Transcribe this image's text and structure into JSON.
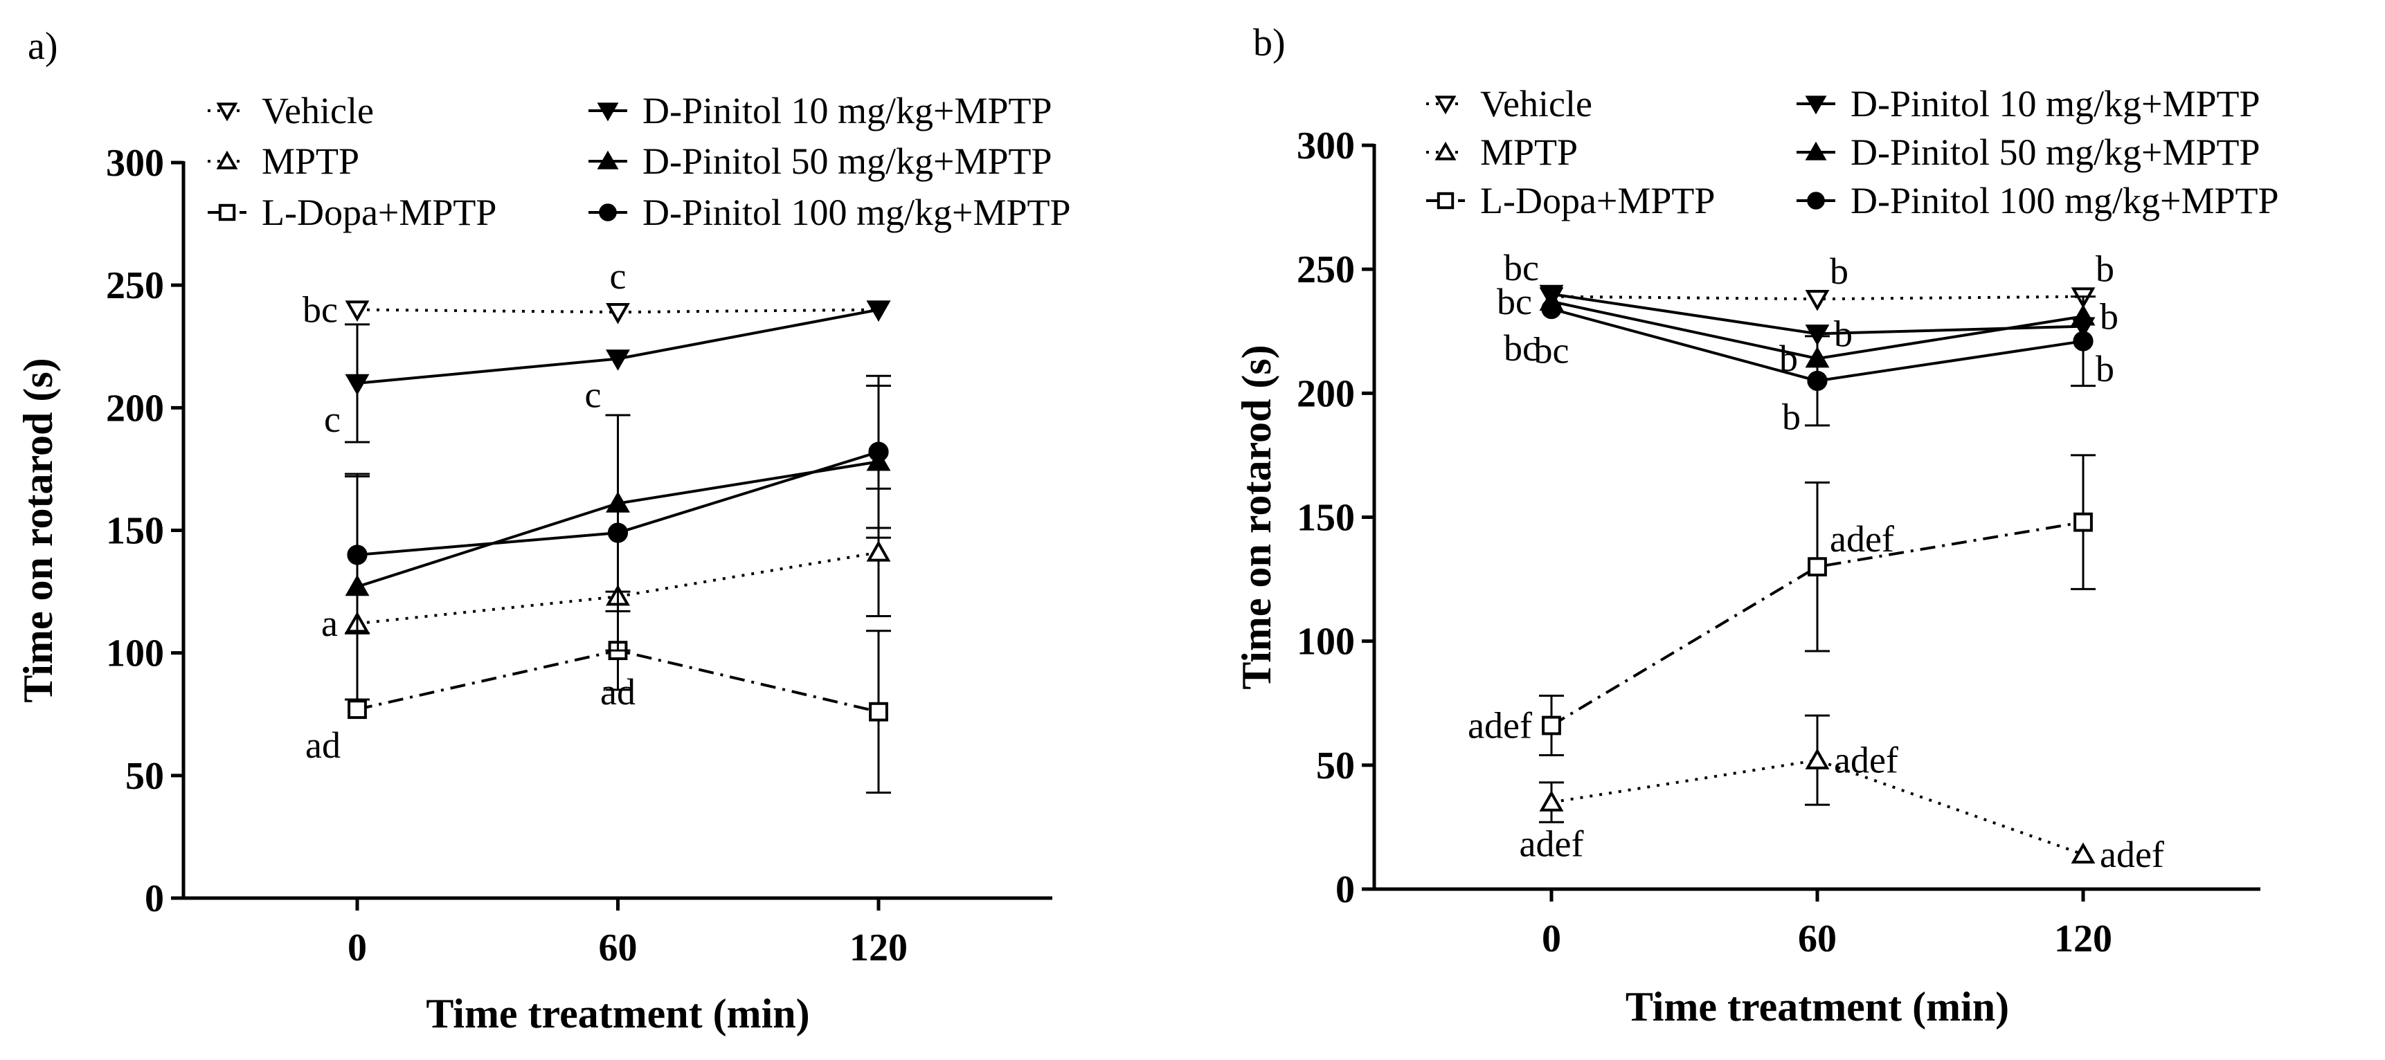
{
  "chart_data": [
    {
      "type": "line",
      "panel_label": "a)",
      "xlabel": "Time treatment (min)",
      "ylabel": "Time on rotarod (s)",
      "x": [
        0,
        60,
        120
      ],
      "x_ticks": [
        "0",
        "60",
        "120"
      ],
      "xlim": [
        -40,
        160
      ],
      "ylim": [
        0,
        300
      ],
      "y_ticks": [
        "0",
        "50",
        "100",
        "150",
        "200",
        "250",
        "300"
      ],
      "legend_position": "top",
      "series": [
        {
          "name": "Vehicle",
          "marker": "triangle-down-open",
          "line": "dotted",
          "values": [
            240,
            239,
            240
          ],
          "errors": [
            0,
            0,
            0
          ]
        },
        {
          "name": "MPTP",
          "marker": "triangle-up-open",
          "line": "dotted",
          "values": [
            112,
            123,
            141
          ],
          "errors": [
            0,
            0,
            26
          ]
        },
        {
          "name": "L-Dopa+MPTP",
          "marker": "square-open",
          "line": "dashdot",
          "values": [
            77,
            101,
            76
          ],
          "errors": [
            0,
            16,
            33
          ]
        },
        {
          "name": "D-Pinitol 10 mg/kg+MPTP",
          "marker": "triangle-down-filled",
          "line": "solid",
          "values": [
            210,
            220,
            240
          ],
          "errors": [
            24,
            0,
            0
          ]
        },
        {
          "name": "D-Pinitol 50 mg/kg+MPTP",
          "marker": "triangle-up-filled",
          "line": "solid",
          "values": [
            127,
            161,
            178
          ],
          "errors": [
            46,
            36,
            31
          ]
        },
        {
          "name": "D-Pinitol 100 mg/kg+MPTP",
          "marker": "circle-filled",
          "line": "solid",
          "values": [
            140,
            149,
            182
          ],
          "errors": [
            32,
            48,
            31
          ]
        }
      ],
      "annotations": [
        {
          "text": "bc",
          "x": 0,
          "y": 240,
          "pos": "left"
        },
        {
          "text": "c",
          "x": 60,
          "y": 239,
          "pos": "above"
        },
        {
          "text": "c",
          "x": 0,
          "y": 210,
          "pos": "below-left"
        },
        {
          "text": "c",
          "x": 60,
          "y": 220,
          "pos": "below-left"
        },
        {
          "text": "a",
          "x": 0,
          "y": 112,
          "pos": "left"
        },
        {
          "text": "ad",
          "x": 0,
          "y": 77,
          "pos": "below-left"
        },
        {
          "text": "ad",
          "x": 60,
          "y": 101,
          "pos": "below"
        }
      ]
    },
    {
      "type": "line",
      "panel_label": "b)",
      "xlabel": "Time treatment (min)",
      "ylabel": "Time on rotarod (s)",
      "x": [
        0,
        60,
        120
      ],
      "x_ticks": [
        "0",
        "60",
        "120"
      ],
      "xlim": [
        -40,
        160
      ],
      "ylim": [
        0,
        300
      ],
      "y_ticks": [
        "0",
        "50",
        "100",
        "150",
        "200",
        "250",
        "300"
      ],
      "legend_position": "top",
      "series": [
        {
          "name": "Vehicle",
          "marker": "triangle-down-open",
          "line": "dotted",
          "values": [
            239,
            238,
            239
          ],
          "errors": [
            0,
            0,
            0
          ]
        },
        {
          "name": "MPTP",
          "marker": "triangle-up-open",
          "line": "dotted",
          "values": [
            35,
            52,
            14
          ],
          "errors": [
            8,
            18,
            0
          ]
        },
        {
          "name": "L-Dopa+MPTP",
          "marker": "square-open",
          "line": "dashdot",
          "values": [
            66,
            130,
            148
          ],
          "errors": [
            12,
            34,
            27
          ]
        },
        {
          "name": "D-Pinitol 10 mg/kg+MPTP",
          "marker": "triangle-down-filled",
          "line": "solid",
          "values": [
            240,
            224,
            227
          ],
          "errors": [
            0,
            0,
            0
          ]
        },
        {
          "name": "D-Pinitol 50 mg/kg+MPTP",
          "marker": "triangle-up-filled",
          "line": "solid",
          "values": [
            237,
            214,
            231
          ],
          "errors": [
            0,
            0,
            0
          ]
        },
        {
          "name": "D-Pinitol 100 mg/kg+MPTP",
          "marker": "circle-filled",
          "line": "solid",
          "values": [
            234,
            205,
            221
          ],
          "errors": [
            0,
            18,
            18
          ]
        }
      ],
      "annotations": [
        {
          "text": "bc",
          "x": 0,
          "y": 240,
          "pos": "upper-left"
        },
        {
          "text": "bc",
          "x": 0,
          "y": 237,
          "pos": "left"
        },
        {
          "text": "bc",
          "x": 0,
          "y": 230,
          "pos": "lower-left"
        },
        {
          "text": "bc",
          "x": 0,
          "y": 234,
          "pos": "below"
        },
        {
          "text": "b",
          "x": 60,
          "y": 238,
          "pos": "upper-right"
        },
        {
          "text": "b",
          "x": 60,
          "y": 224,
          "pos": "right"
        },
        {
          "text": "b",
          "x": 60,
          "y": 214,
          "pos": "left"
        },
        {
          "text": "b",
          "x": 60,
          "y": 205,
          "pos": "below-left"
        },
        {
          "text": "b",
          "x": 120,
          "y": 239,
          "pos": "upper-right"
        },
        {
          "text": "b",
          "x": 120,
          "y": 231,
          "pos": "right"
        },
        {
          "text": "b",
          "x": 120,
          "y": 221,
          "pos": "lower-right"
        },
        {
          "text": "adef",
          "x": 60,
          "y": 130,
          "pos": "upper-right"
        },
        {
          "text": "adef",
          "x": 0,
          "y": 66,
          "pos": "left"
        },
        {
          "text": "adef",
          "x": 60,
          "y": 52,
          "pos": "right"
        },
        {
          "text": "adef",
          "x": 0,
          "y": 35,
          "pos": "below"
        },
        {
          "text": "adef",
          "x": 120,
          "y": 14,
          "pos": "right"
        }
      ]
    }
  ]
}
